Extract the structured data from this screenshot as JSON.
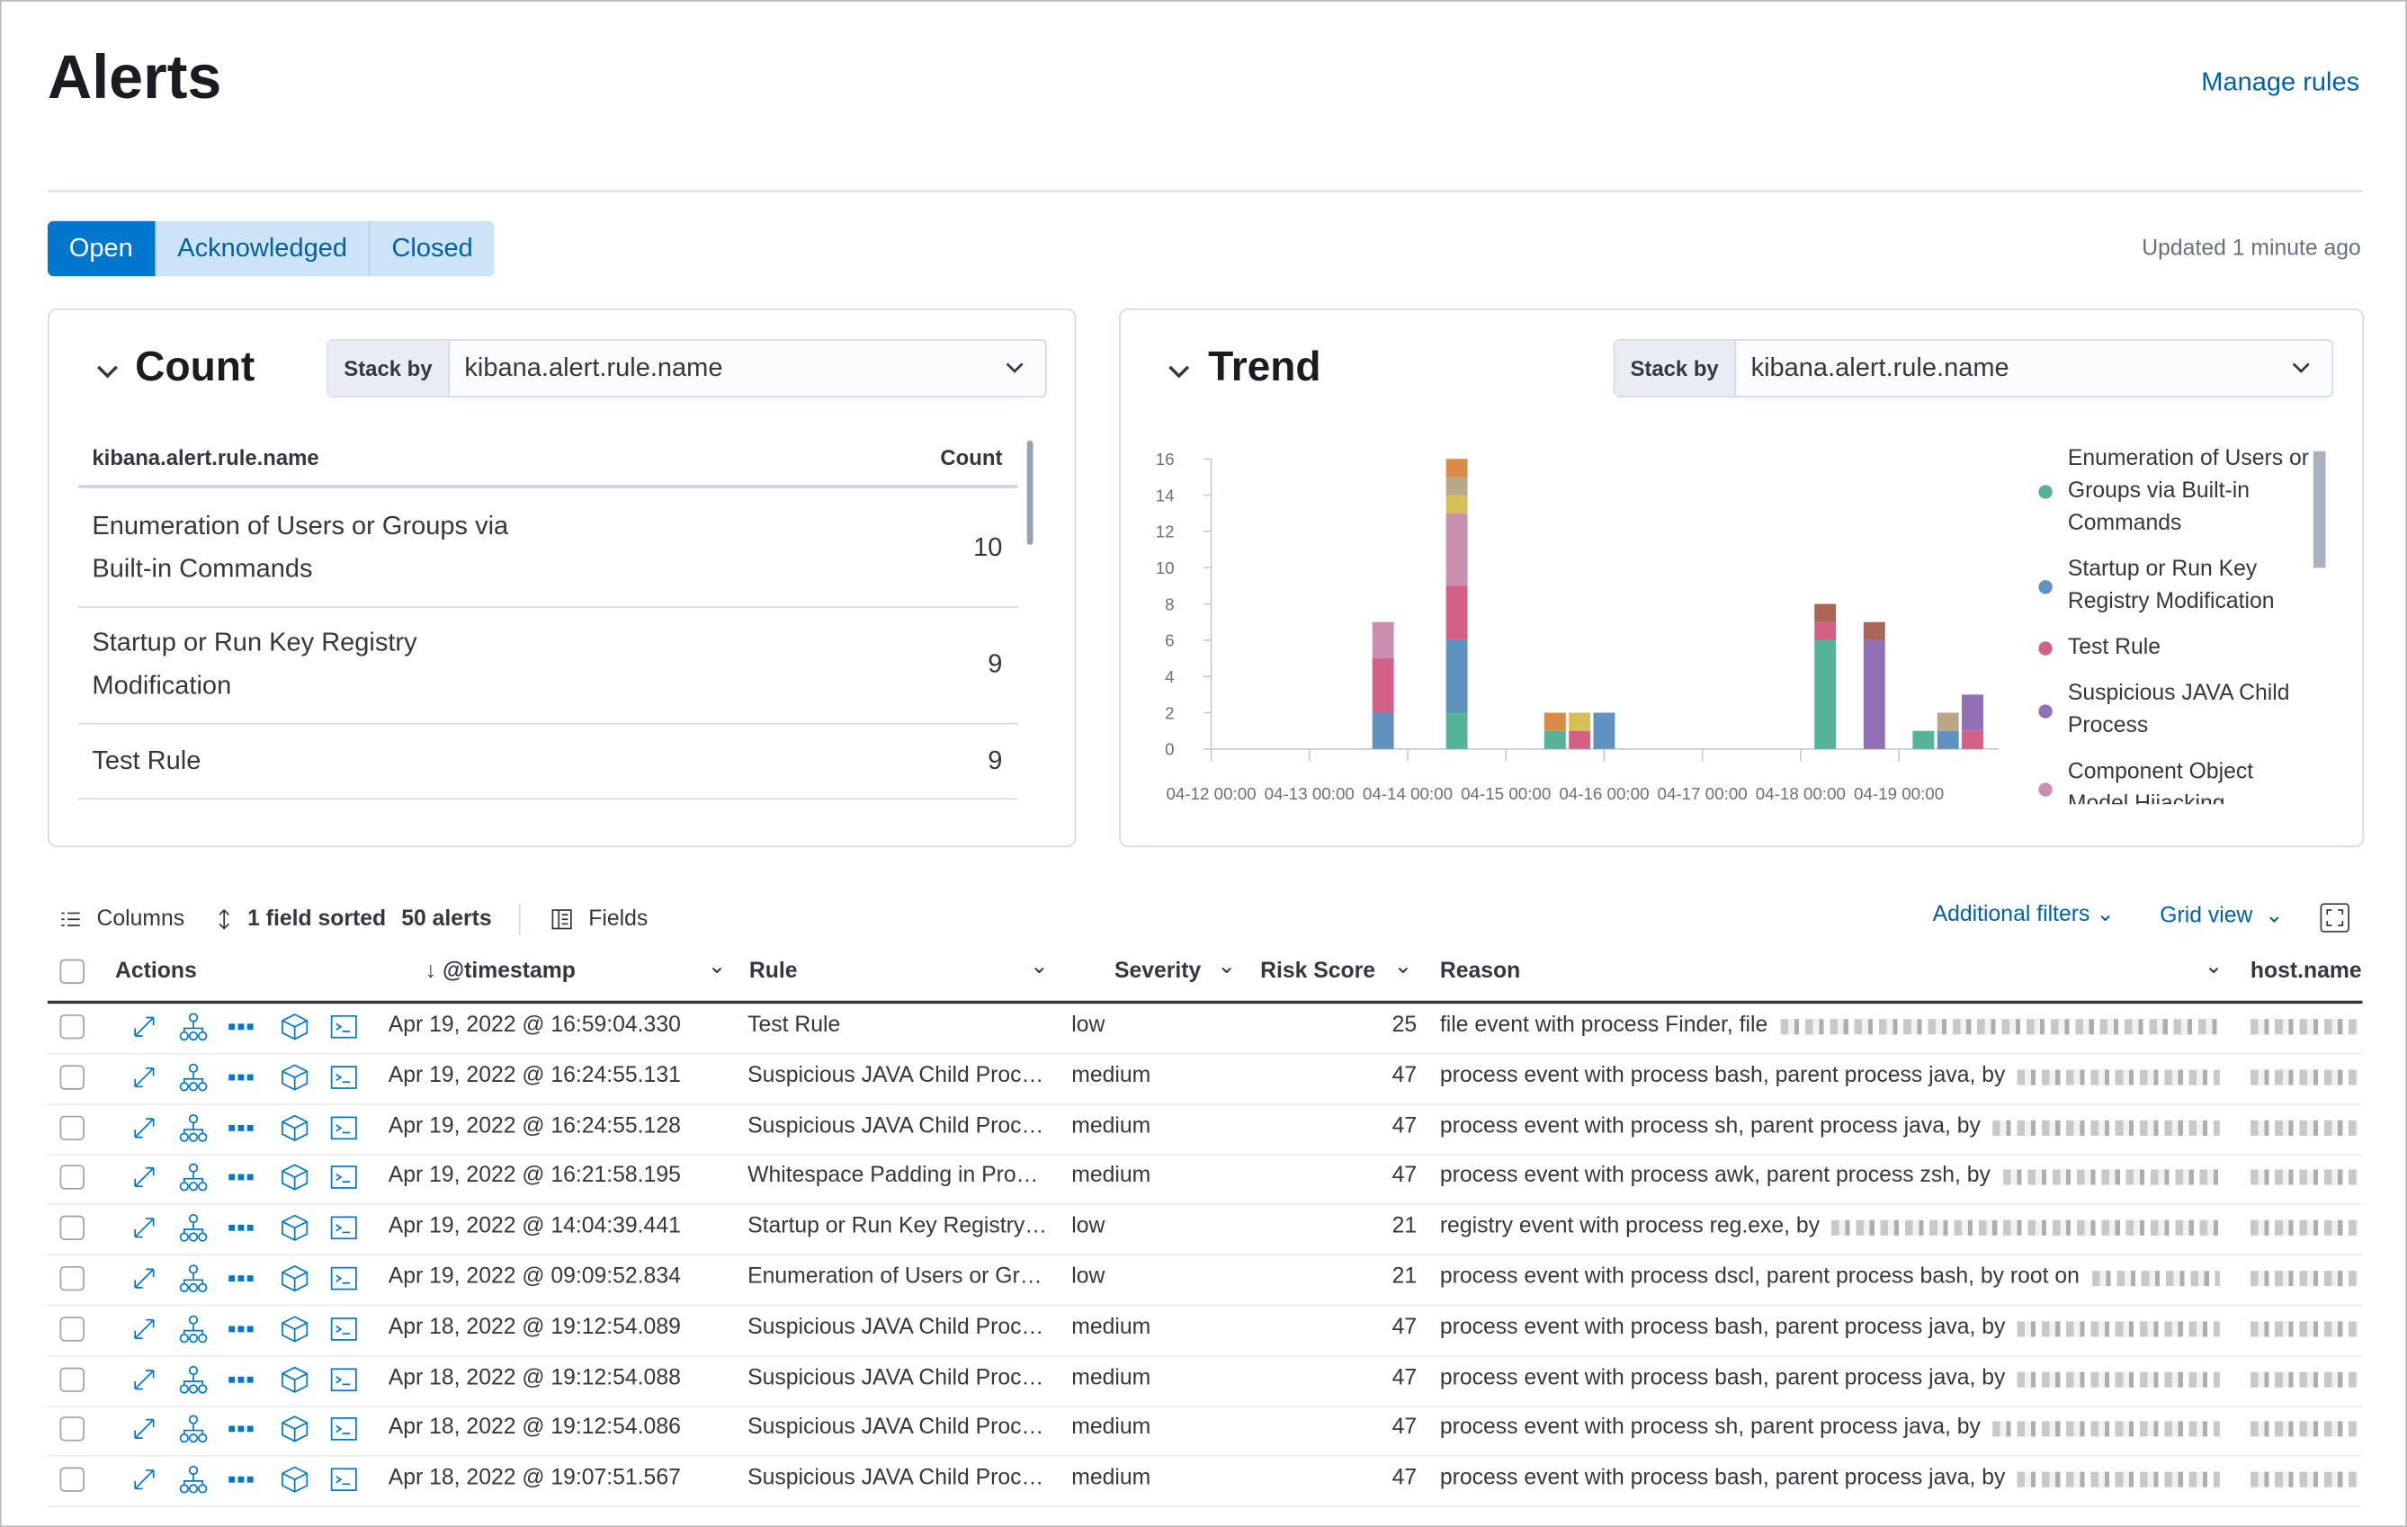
{
  "header": {
    "title": "Alerts",
    "manage_rules": "Manage rules"
  },
  "status_tabs": {
    "tabs": [
      "Open",
      "Acknowledged",
      "Closed"
    ],
    "updated": "Updated 1 minute ago"
  },
  "count_panel": {
    "title": "Count",
    "stack_by_label": "Stack by",
    "stack_by_field": "kibana.alert.rule.name",
    "columns": [
      "kibana.alert.rule.name",
      "Count"
    ],
    "rows": [
      [
        "Enumeration of Users or Groups via Built-in Commands",
        10
      ],
      [
        "Startup or Run Key Registry Modification",
        9
      ],
      [
        "Test Rule",
        9
      ]
    ]
  },
  "trend_panel": {
    "title": "Trend",
    "stack_by_label": "Stack by",
    "stack_by_field": "kibana.alert.rule.name"
  },
  "chart_data": {
    "type": "stacked_bar",
    "x": [
      "04-13 18:00",
      "04-14 12:00",
      "04-15 12:00",
      "04-15 18:00",
      "04-16 00:00",
      "04-18 06:00",
      "04-18 18:00",
      "04-19 06:00",
      "04-19 12:00",
      "04-19 18:00"
    ],
    "series": [
      {
        "name": "Enumeration of Users or Groups via Built-in Commands",
        "color": "#54b399",
        "values": [
          0,
          2,
          1,
          0,
          0,
          6,
          0,
          1,
          0,
          0
        ]
      },
      {
        "name": "Startup or Run Key Registry Modification",
        "color": "#6092c0",
        "values": [
          2,
          4,
          0,
          0,
          2,
          0,
          0,
          0,
          1,
          0
        ]
      },
      {
        "name": "Test Rule",
        "color": "#d36086",
        "values": [
          3,
          3,
          0,
          1,
          0,
          1,
          0,
          0,
          0,
          1
        ]
      },
      {
        "name": "Suspicious JAVA Child Process",
        "color": "#9170b8",
        "values": [
          0,
          0,
          0,
          0,
          0,
          0,
          6,
          0,
          0,
          2
        ]
      },
      {
        "name": "Component Object Model Hijacking",
        "color": "#ca8eae",
        "values": [
          2,
          4,
          0,
          0,
          0,
          0,
          0,
          0,
          0,
          0
        ]
      },
      {
        "color": "#d6bf57",
        "values": [
          0,
          1,
          0,
          1,
          0,
          0,
          0,
          0,
          0,
          0
        ]
      },
      {
        "color": "#b9a888",
        "values": [
          0,
          1,
          0,
          0,
          0,
          0,
          0,
          0,
          1,
          0
        ]
      },
      {
        "color": "#da8b45",
        "values": [
          0,
          1,
          1,
          0,
          0,
          0,
          0,
          0,
          0,
          0
        ]
      },
      {
        "color": "#aa6556",
        "values": [
          0,
          0,
          0,
          0,
          0,
          1,
          1,
          0,
          0,
          0
        ]
      }
    ],
    "ylim": [
      0,
      16
    ],
    "yticks": [
      0,
      2,
      4,
      6,
      8,
      10,
      12,
      14,
      16
    ],
    "xticks": [
      "04-12 00:00",
      "04-13 00:00",
      "04-14 00:00",
      "04-15 00:00",
      "04-16 00:00",
      "04-17 00:00",
      "04-18 00:00",
      "04-19 00:00"
    ],
    "legend": "right"
  },
  "alerts_toolbar": {
    "columns": "Columns",
    "sorted": "1 field sorted",
    "count": "50 alerts",
    "fields": "Fields",
    "additional_filters": "Additional filters",
    "grid_view": "Grid view"
  },
  "alerts_table": {
    "columns": [
      "Actions",
      "@timestamp",
      "Rule",
      "Severity",
      "Risk Score",
      "Reason",
      "host.name"
    ],
    "rows": [
      [
        "Apr 19, 2022 @ 16:59:04.330",
        "Test Rule",
        "low",
        "25",
        "file event with process Finder, file"
      ],
      [
        "Apr 19, 2022 @ 16:24:55.131",
        "Suspicious JAVA Child Proc…",
        "medium",
        "47",
        "process event with process bash, parent process java, by"
      ],
      [
        "Apr 19, 2022 @ 16:24:55.128",
        "Suspicious JAVA Child Proc…",
        "medium",
        "47",
        "process event with process sh, parent process java, by"
      ],
      [
        "Apr 19, 2022 @ 16:21:58.195",
        "Whitespace Padding in Pro…",
        "medium",
        "47",
        "process event with process awk, parent process zsh, by"
      ],
      [
        "Apr 19, 2022 @ 14:04:39.441",
        "Startup or Run Key Registry…",
        "low",
        "21",
        "registry event with process reg.exe, by"
      ],
      [
        "Apr 19, 2022 @ 09:09:52.834",
        "Enumeration of Users or Gr…",
        "low",
        "21",
        "process event with process dscl, parent process bash, by root on"
      ],
      [
        "Apr 18, 2022 @ 19:12:54.089",
        "Suspicious JAVA Child Proc…",
        "medium",
        "47",
        "process event with process bash, parent process java, by"
      ],
      [
        "Apr 18, 2022 @ 19:12:54.088",
        "Suspicious JAVA Child Proc…",
        "medium",
        "47",
        "process event with process bash, parent process java, by"
      ],
      [
        "Apr 18, 2022 @ 19:12:54.086",
        "Suspicious JAVA Child Proc…",
        "medium",
        "47",
        "process event with process sh, parent process java, by"
      ],
      [
        "Apr 18, 2022 @ 19:07:51.567",
        "Suspicious JAVA Child Proc…",
        "medium",
        "47",
        "process event with process bash, parent process java, by"
      ]
    ]
  }
}
